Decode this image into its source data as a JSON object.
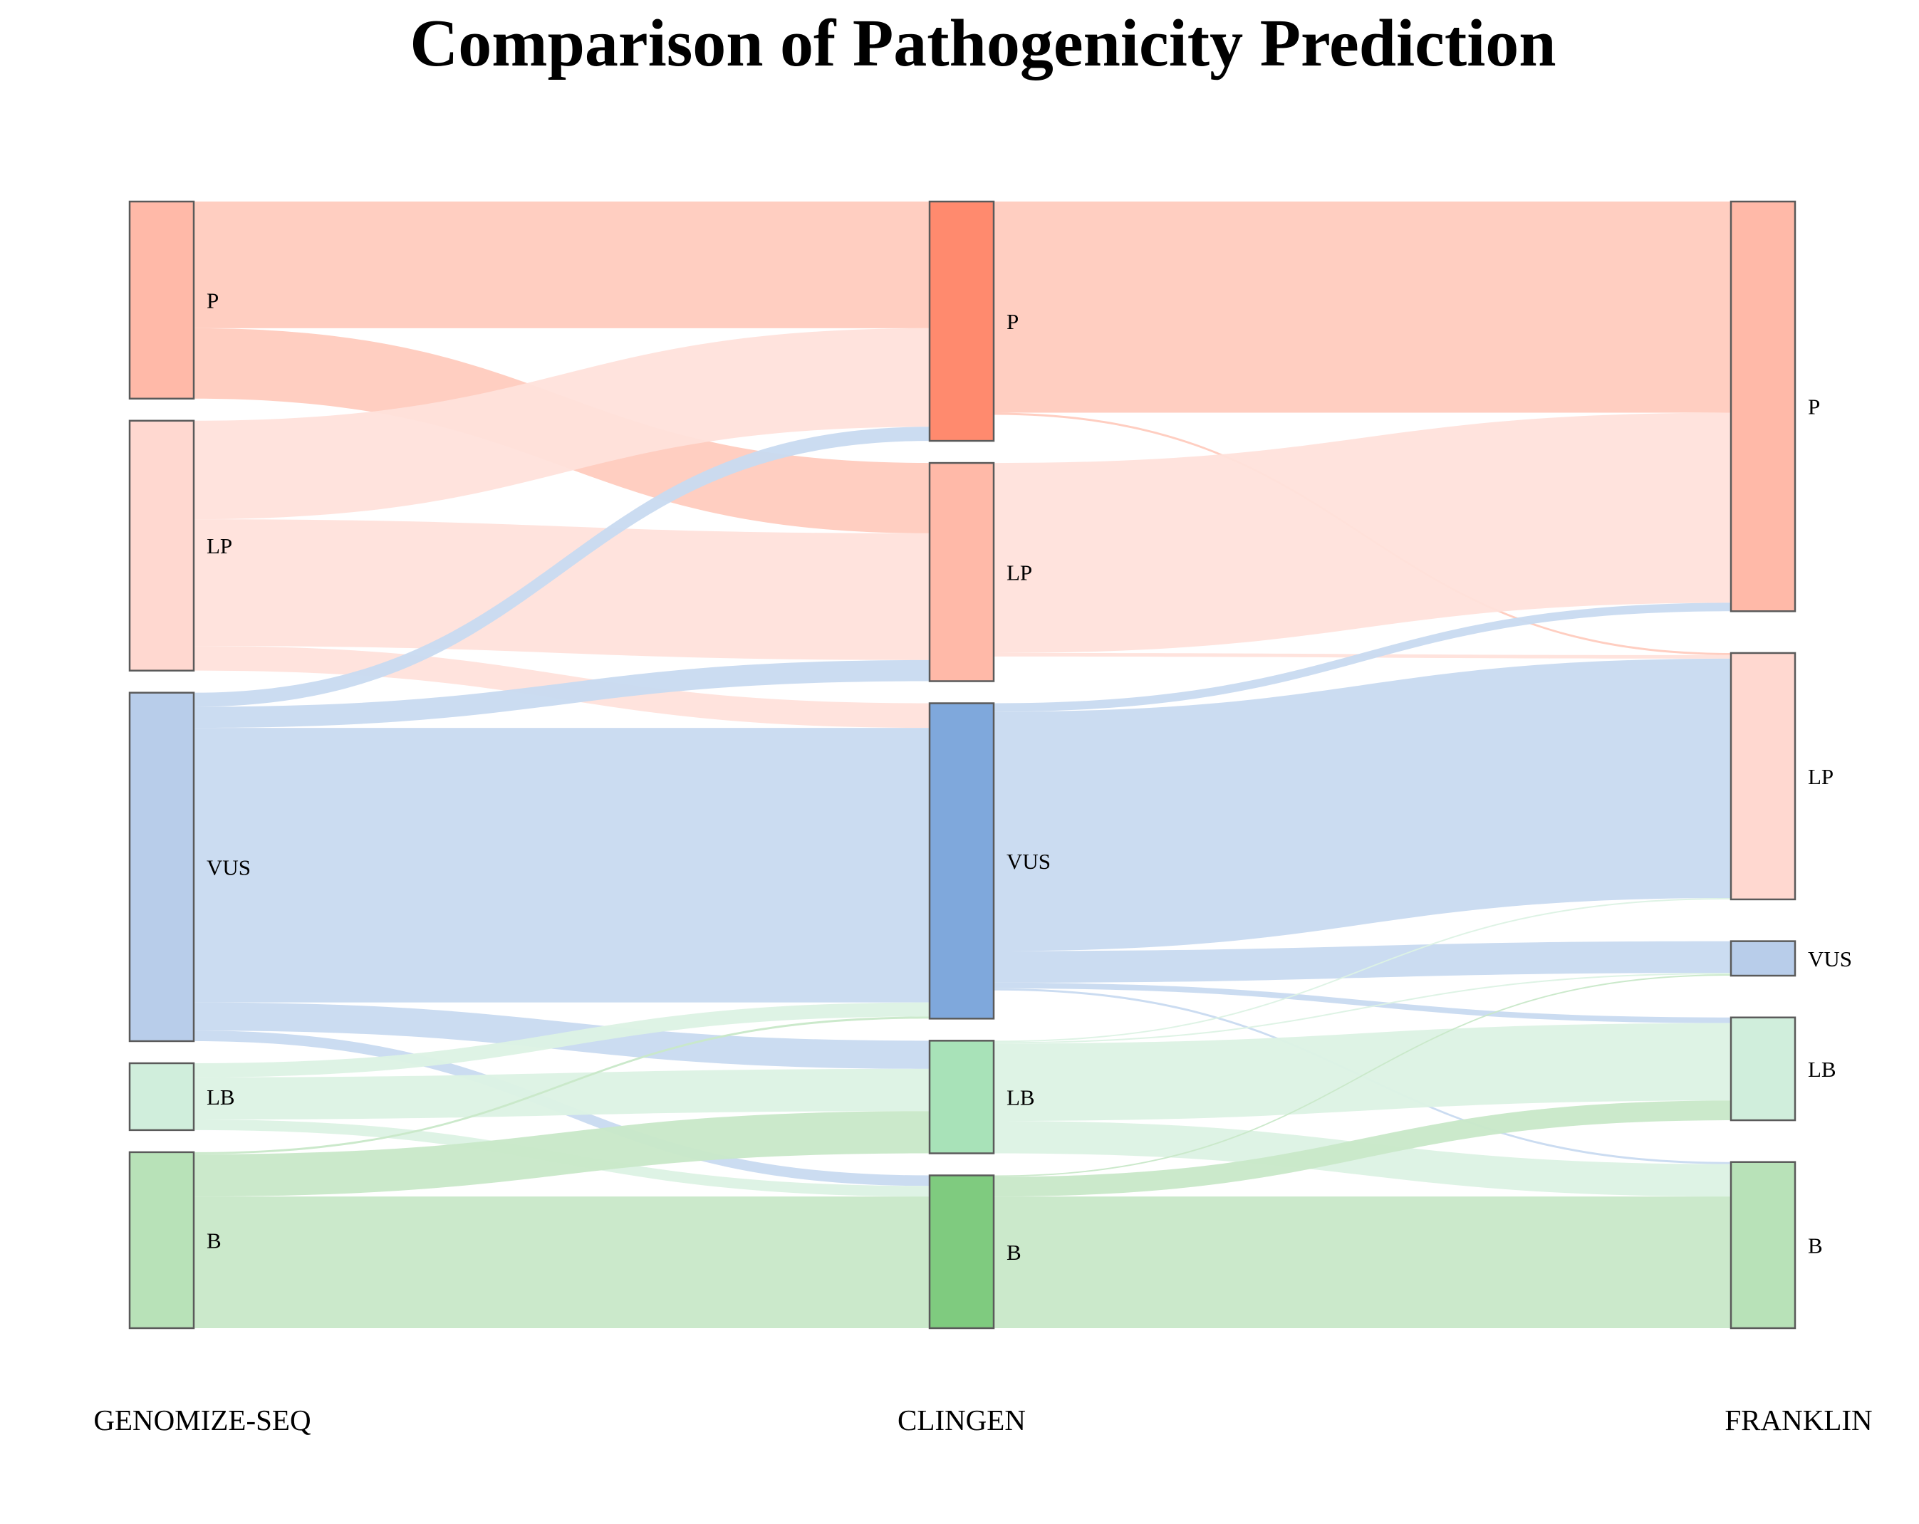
{
  "chart_data": {
    "type": "sankey",
    "title": "Comparison of Pathogenicity Prediction",
    "columns": [
      "GENOMIZE-SEQ",
      "CLINGEN",
      "FRANKLIN"
    ],
    "categories": [
      "P",
      "LP",
      "VUS",
      "LB",
      "B"
    ],
    "colors": {
      "P": {
        "node": "#FFB9A8",
        "node_mid": "#FF8A6E",
        "link": "#FFCBBE"
      },
      "LP": {
        "node": "#FFD8D0",
        "node_mid": "#FFB9A8",
        "link": "#FFE1DB"
      },
      "VUS": {
        "node": "#B8CDEA",
        "node_mid": "#7FA8DC",
        "link": "#C8DAF0"
      },
      "LB": {
        "node": "#D0EEDC",
        "node_mid": "#A8E2B8",
        "link": "#DCF2E4"
      },
      "B": {
        "node": "#B8E2B8",
        "node_mid": "#7FCB7F",
        "link": "#C8E8C8"
      }
    },
    "links_stage1": [
      {
        "source": "P",
        "target": "P",
        "value": 18
      },
      {
        "source": "P",
        "target": "LP",
        "value": 10
      },
      {
        "source": "LP",
        "target": "P",
        "value": 14
      },
      {
        "source": "LP",
        "target": "LP",
        "value": 18
      },
      {
        "source": "LP",
        "target": "VUS",
        "value": 3.5
      },
      {
        "source": "VUS",
        "target": "P",
        "value": 2
      },
      {
        "source": "VUS",
        "target": "LP",
        "value": 3
      },
      {
        "source": "VUS",
        "target": "VUS",
        "value": 39
      },
      {
        "source": "VUS",
        "target": "LB",
        "value": 4
      },
      {
        "source": "VUS",
        "target": "B",
        "value": 1.5
      },
      {
        "source": "LB",
        "target": "VUS",
        "value": 2
      },
      {
        "source": "LB",
        "target": "LB",
        "value": 6
      },
      {
        "source": "LB",
        "target": "B",
        "value": 1.5
      },
      {
        "source": "B",
        "target": "VUS",
        "value": 0.3
      },
      {
        "source": "B",
        "target": "LB",
        "value": 6
      },
      {
        "source": "B",
        "target": "B",
        "value": 18.7
      }
    ],
    "links_stage2": [
      {
        "source": "P",
        "target": "P",
        "value": 30
      },
      {
        "source": "P",
        "target": "LP",
        "value": 0.3
      },
      {
        "source": "LP",
        "target": "P",
        "value": 27
      },
      {
        "source": "LP",
        "target": "LP",
        "value": 0.5
      },
      {
        "source": "VUS",
        "target": "P",
        "value": 1.2
      },
      {
        "source": "VUS",
        "target": "LP",
        "value": 34
      },
      {
        "source": "VUS",
        "target": "VUS",
        "value": 4.5
      },
      {
        "source": "VUS",
        "target": "LB",
        "value": 0.8
      },
      {
        "source": "VUS",
        "target": "B",
        "value": 0.3
      },
      {
        "source": "LB",
        "target": "LP",
        "value": 0.2
      },
      {
        "source": "LB",
        "target": "VUS",
        "value": 0.2
      },
      {
        "source": "LB",
        "target": "LB",
        "value": 11
      },
      {
        "source": "LB",
        "target": "B",
        "value": 4.6
      },
      {
        "source": "B",
        "target": "VUS",
        "value": 0.2
      },
      {
        "source": "B",
        "target": "LB",
        "value": 2.8
      },
      {
        "source": "B",
        "target": "B",
        "value": 18.7
      }
    ]
  }
}
